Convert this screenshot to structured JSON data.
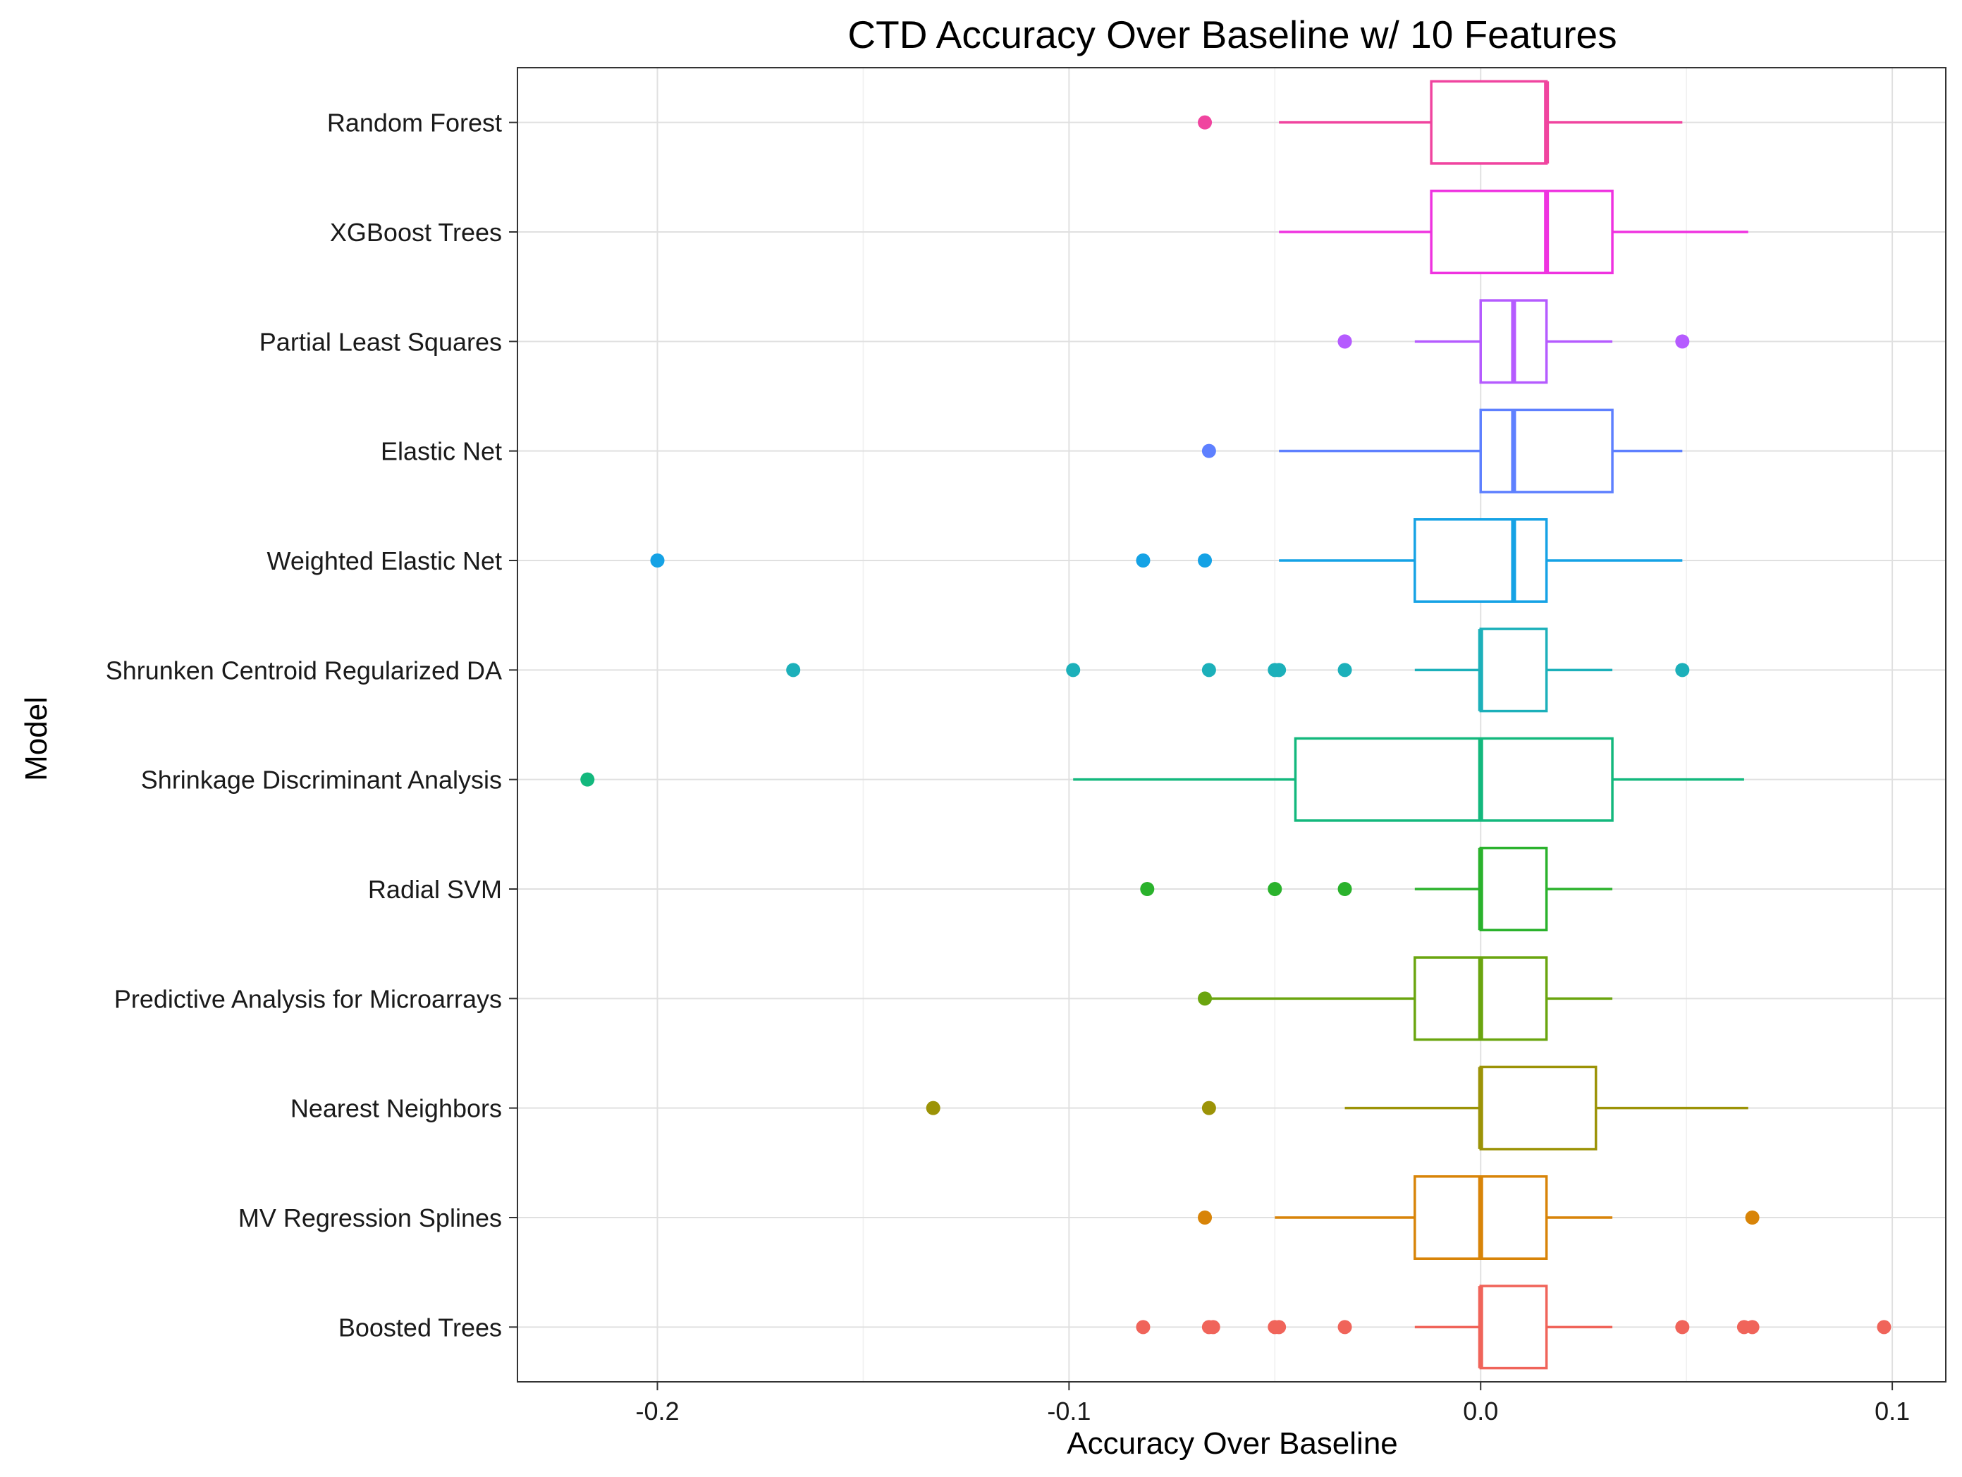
{
  "chart_data": {
    "type": "boxplot",
    "orientation": "horizontal",
    "title": "CTD Accuracy Over Baseline w/ 10 Features",
    "xlabel": "Accuracy Over Baseline",
    "ylabel": "Model",
    "xlim": [
      -0.234,
      0.113
    ],
    "x_ticks": [
      -0.2,
      -0.1,
      0.0,
      0.1
    ],
    "x_tick_labels": [
      "-0.2",
      "-0.1",
      "0.0",
      "0.1"
    ],
    "grid": true,
    "legend": "none",
    "series": [
      {
        "name": "Random Forest",
        "color": "#F0449F",
        "whisker_low": -0.049,
        "q1": -0.012,
        "median": 0.016,
        "q3": 0.016,
        "whisker_high": 0.049,
        "outliers": [
          -0.067
        ]
      },
      {
        "name": "XGBoost Trees",
        "color": "#EF33E0",
        "whisker_low": -0.049,
        "q1": -0.012,
        "median": 0.016,
        "q3": 0.032,
        "whisker_high": 0.065,
        "outliers": []
      },
      {
        "name": "Partial Least Squares",
        "color": "#B55BFF",
        "whisker_low": -0.016,
        "q1": 0.0,
        "median": 0.008,
        "q3": 0.016,
        "whisker_high": 0.032,
        "outliers": [
          -0.033,
          -0.033,
          0.049
        ]
      },
      {
        "name": "Elastic Net",
        "color": "#5E80FF",
        "whisker_low": -0.049,
        "q1": 0.0,
        "median": 0.008,
        "q3": 0.032,
        "whisker_high": 0.049,
        "outliers": [
          -0.066
        ]
      },
      {
        "name": "Weighted Elastic Net",
        "color": "#15A2E5",
        "whisker_low": -0.049,
        "q1": -0.016,
        "median": 0.008,
        "q3": 0.016,
        "whisker_high": 0.049,
        "outliers": [
          -0.2,
          -0.082,
          -0.067
        ]
      },
      {
        "name": "Shrunken Centroid Regularized DA",
        "color": "#1CB0BA",
        "whisker_low": -0.016,
        "q1": 0.0,
        "median": 0.0,
        "q3": 0.016,
        "whisker_high": 0.032,
        "outliers": [
          -0.167,
          -0.099,
          -0.066,
          -0.05,
          -0.049,
          -0.033,
          0.049
        ]
      },
      {
        "name": "Shrinkage Discriminant Analysis",
        "color": "#13B87D",
        "whisker_low": -0.099,
        "q1": -0.045,
        "median": 0.0,
        "q3": 0.032,
        "whisker_high": 0.064,
        "outliers": [
          -0.217
        ]
      },
      {
        "name": "Radial SVM",
        "color": "#2AB22C",
        "whisker_low": -0.016,
        "q1": 0.0,
        "median": 0.0,
        "q3": 0.016,
        "whisker_high": 0.032,
        "outliers": [
          -0.081,
          -0.05,
          -0.033
        ]
      },
      {
        "name": "Predictive Analysis for Microarrays",
        "color": "#6AA50F",
        "whisker_low": -0.067,
        "q1": -0.016,
        "median": 0.0,
        "q3": 0.016,
        "whisker_high": 0.032,
        "outliers": [
          -0.067
        ]
      },
      {
        "name": "Nearest Neighbors",
        "color": "#9C9307",
        "whisker_low": -0.033,
        "q1": 0.0,
        "median": 0.0,
        "q3": 0.028,
        "whisker_high": 0.065,
        "outliers": [
          -0.133,
          -0.066
        ]
      },
      {
        "name": "MV Regression Splines",
        "color": "#D88408",
        "whisker_low": -0.05,
        "q1": -0.016,
        "median": 0.0,
        "q3": 0.016,
        "whisker_high": 0.032,
        "outliers": [
          -0.067,
          0.066
        ]
      },
      {
        "name": "Boosted Trees",
        "color": "#F0645A",
        "whisker_low": -0.016,
        "q1": 0.0,
        "median": 0.0,
        "q3": 0.016,
        "whisker_high": 0.032,
        "outliers": [
          -0.082,
          -0.066,
          -0.065,
          -0.05,
          -0.049,
          -0.033,
          0.049,
          0.064,
          0.066,
          0.098
        ]
      }
    ]
  }
}
